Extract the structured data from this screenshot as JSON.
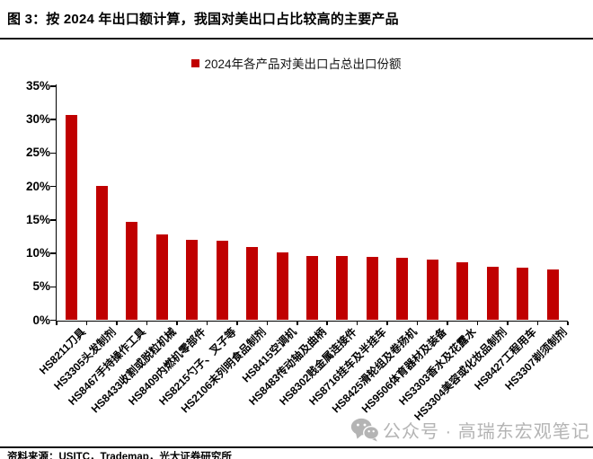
{
  "page": {
    "title": "图 3：按 2024 年出口额计算，我国对美出口占比较高的主要产品",
    "source": "资料来源：USITC，Trademap，光大证券研究所",
    "watermark": "公众号 · 高瑞东宏观笔记"
  },
  "legend": {
    "label": "2024年各产品对美出口占总出口份额",
    "marker_color": "#c00000"
  },
  "chart_data": {
    "type": "bar",
    "title": "2024年各产品对美出口占总出口份额",
    "categories": [
      "HS8211刀具",
      "HS3305头发制剂",
      "HS8467手持操作工具",
      "HS8433收割或脱粒机械",
      "HS8409内燃机零部件",
      "HS8215勺子、叉子等",
      "HS2106未列明食品制剂",
      "HS8415空调机",
      "HS8483传动轴及曲柄",
      "HS8302贱金属连接件",
      "HS8716挂车及半挂车",
      "HS8425滑轮组及卷扬机",
      "HS9506体育器材及装备",
      "HS3303香水及花露水",
      "HS3304美容或化妆品制剂",
      "HS8427工程用车",
      "HS3307剃须制剂"
    ],
    "values": [
      30.7,
      20.1,
      14.7,
      12.8,
      12.0,
      11.9,
      11.0,
      10.2,
      9.6,
      9.6,
      9.5,
      9.4,
      9.1,
      8.6,
      8.0,
      7.9,
      7.6
    ],
    "unit": "%",
    "xlabel": "",
    "ylabel": "",
    "ylim": [
      0,
      35
    ],
    "ytick_values": [
      0,
      5,
      10,
      15,
      20,
      25,
      30,
      35
    ],
    "ytick_labels": [
      "0%",
      "5%",
      "10%",
      "15%",
      "20%",
      "25%",
      "30%",
      "35%"
    ],
    "x_label_rotation_deg": 45,
    "grid": false,
    "legend_position": "top-center",
    "bar_color": "#c00000",
    "axis_color": "#000000"
  }
}
